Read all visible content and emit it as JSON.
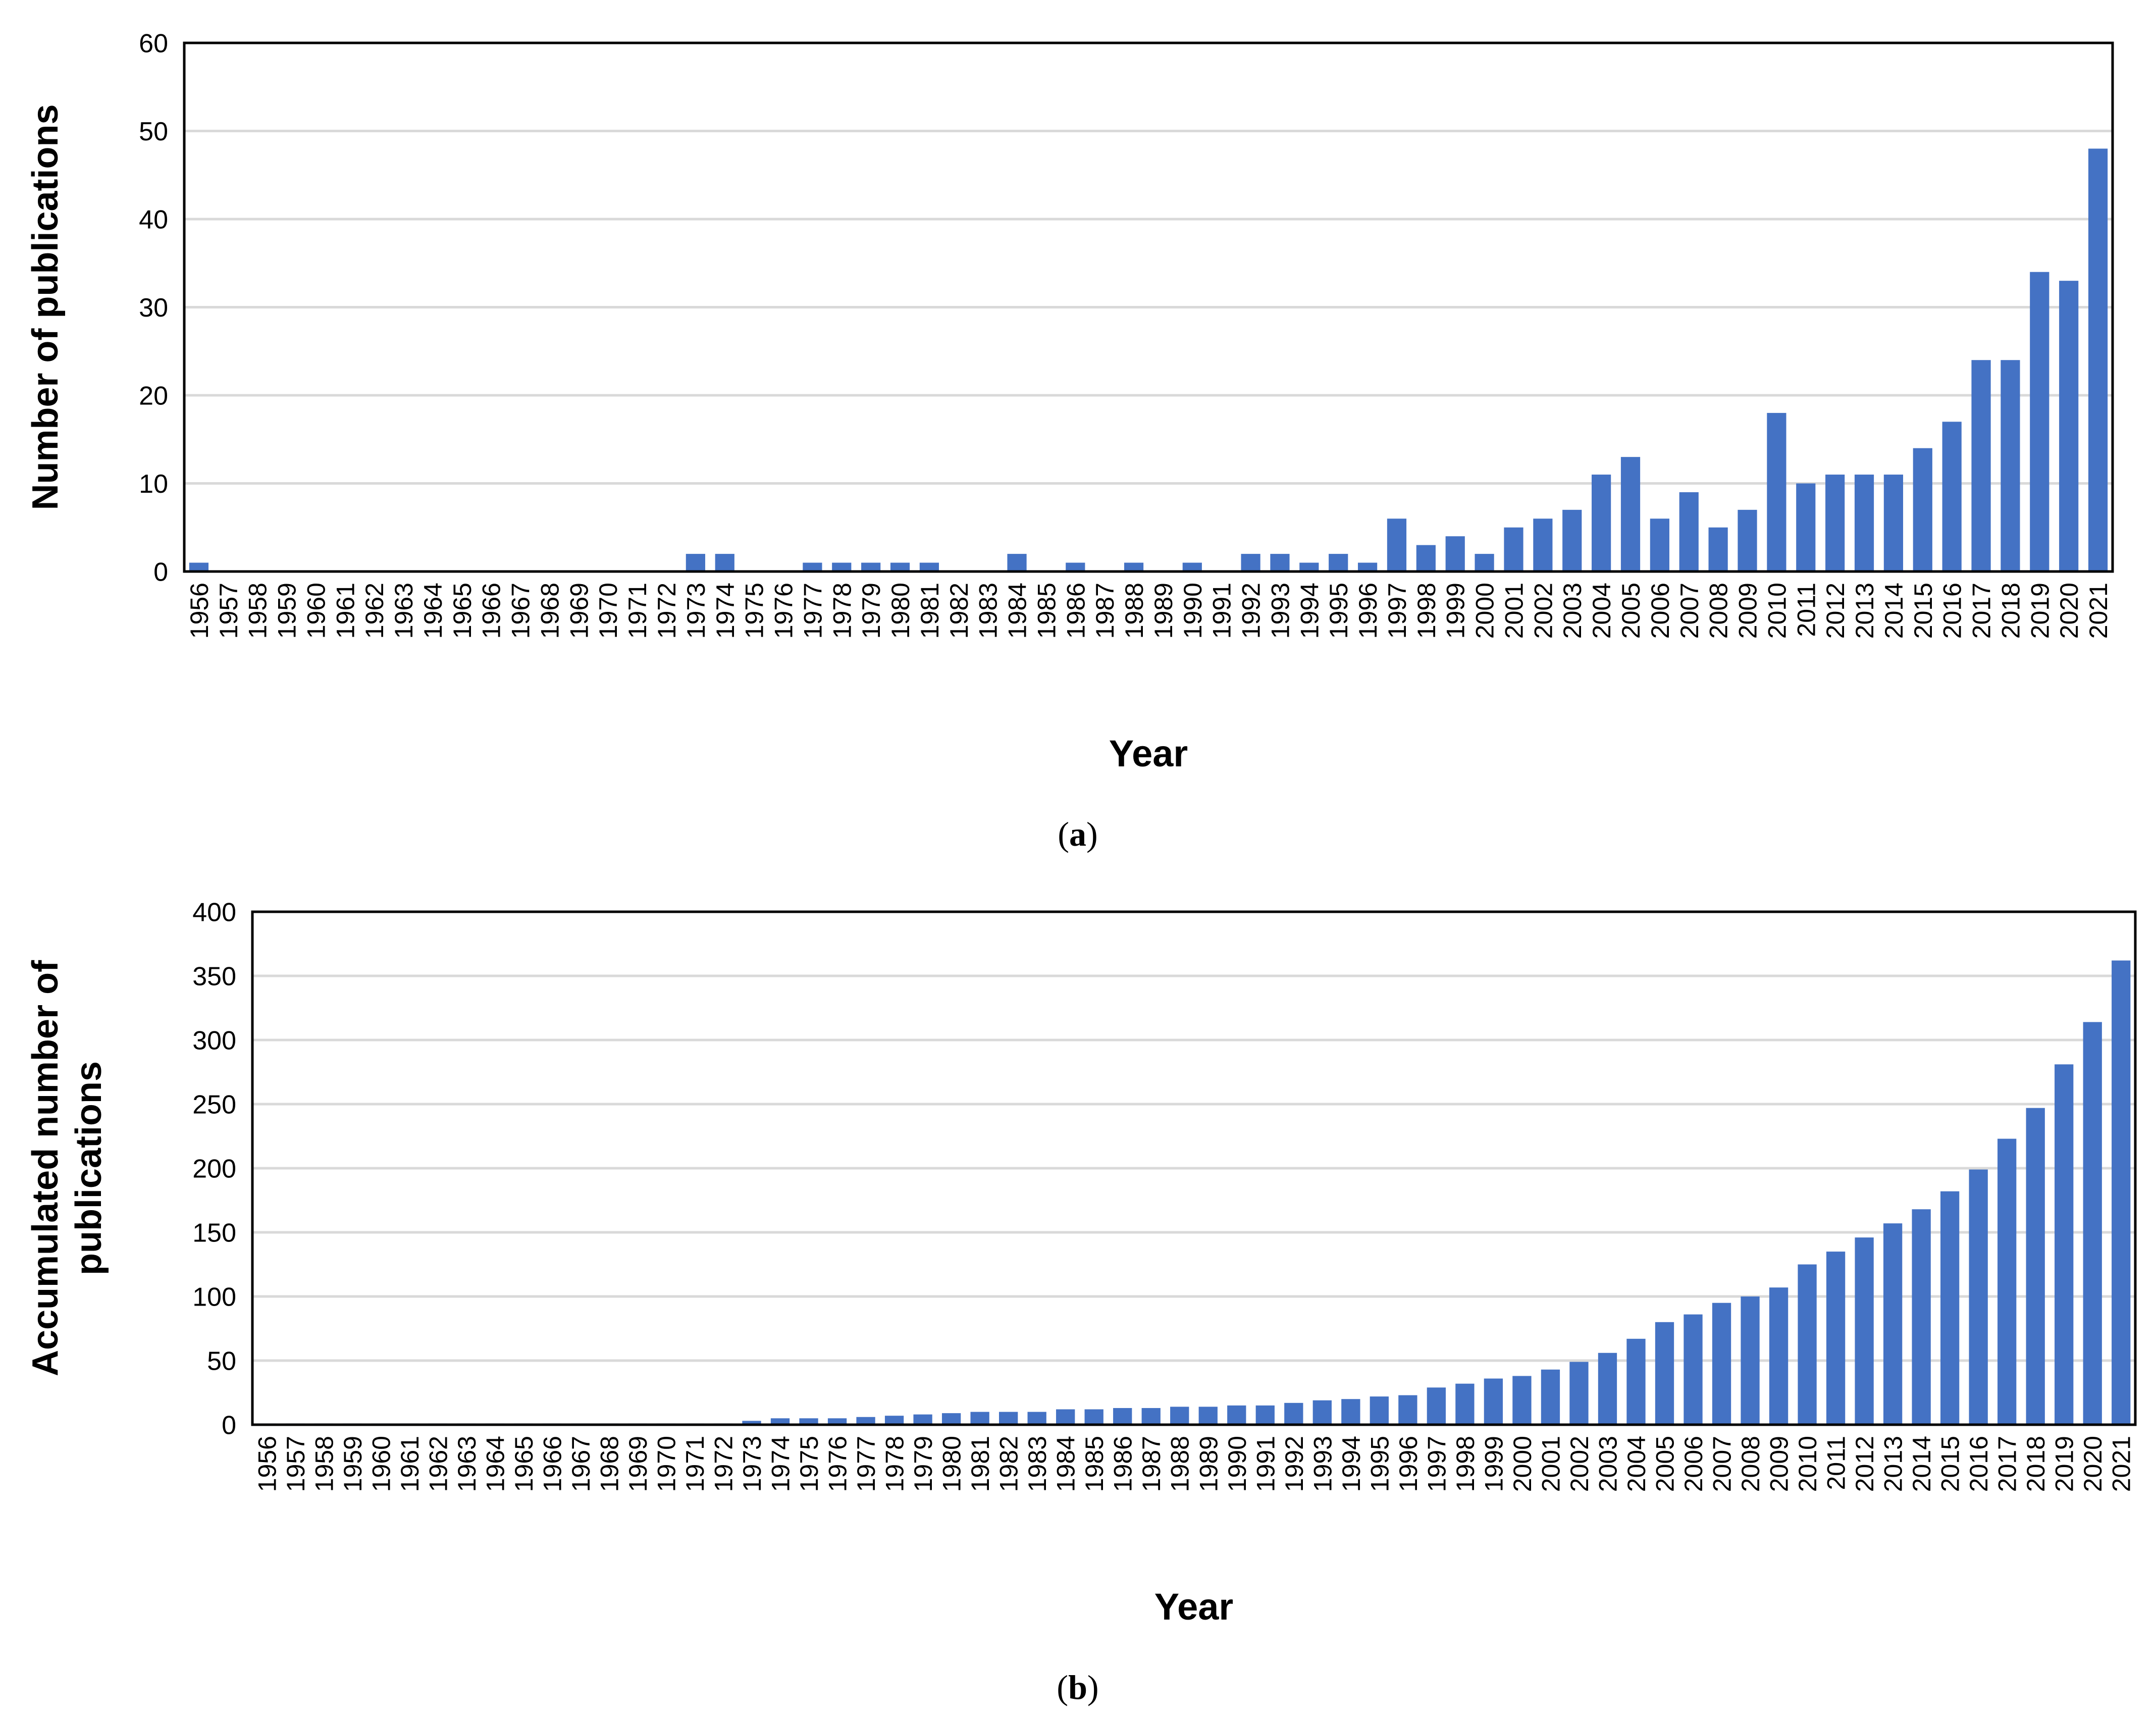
{
  "colors": {
    "bar": "#4472C4",
    "grid": "#D9D9D9",
    "frame": "#000000"
  },
  "captions": {
    "a": "a",
    "b": "b"
  },
  "chart_data": [
    {
      "type": "bar",
      "panel": "a",
      "title": "",
      "xlabel": "Year",
      "ylabel": "Number of publications",
      "ylim": [
        0,
        60
      ],
      "yticks": [
        0,
        10,
        20,
        30,
        40,
        50,
        60
      ],
      "grid": true,
      "categories": [
        "1956",
        "1957",
        "1958",
        "1959",
        "1960",
        "1961",
        "1962",
        "1963",
        "1964",
        "1965",
        "1966",
        "1967",
        "1968",
        "1969",
        "1970",
        "1971",
        "1972",
        "1973",
        "1974",
        "1975",
        "1976",
        "1977",
        "1978",
        "1979",
        "1980",
        "1981",
        "1982",
        "1983",
        "1984",
        "1985",
        "1986",
        "1987",
        "1988",
        "1989",
        "1990",
        "1991",
        "1992",
        "1993",
        "1994",
        "1995",
        "1996",
        "1997",
        "1998",
        "1999",
        "2000",
        "2001",
        "2002",
        "2003",
        "2004",
        "2005",
        "2006",
        "2007",
        "2008",
        "2009",
        "2010",
        "2011",
        "2012",
        "2013",
        "2014",
        "2015",
        "2016",
        "2017",
        "2018",
        "2019",
        "2020",
        "2021"
      ],
      "values": [
        1,
        0,
        0,
        0,
        0,
        0,
        0,
        0,
        0,
        0,
        0,
        0,
        0,
        0,
        0,
        0,
        0,
        2,
        2,
        0,
        0,
        1,
        1,
        1,
        1,
        1,
        0,
        0,
        2,
        0,
        1,
        0,
        1,
        0,
        1,
        0,
        2,
        2,
        1,
        2,
        1,
        6,
        3,
        4,
        2,
        5,
        6,
        7,
        11,
        13,
        6,
        9,
        5,
        7,
        18,
        10,
        11,
        11,
        11,
        14,
        17,
        24,
        24,
        34,
        33,
        48
      ]
    },
    {
      "type": "bar",
      "panel": "b",
      "title": "",
      "xlabel": "Year",
      "ylabel": [
        "Accumulated number of",
        "publications"
      ],
      "ylim": [
        0,
        400
      ],
      "yticks": [
        0,
        50,
        100,
        150,
        200,
        250,
        300,
        350,
        400
      ],
      "grid": true,
      "categories": [
        "1956",
        "1957",
        "1958",
        "1959",
        "1960",
        "1961",
        "1962",
        "1963",
        "1964",
        "1965",
        "1966",
        "1967",
        "1968",
        "1969",
        "1970",
        "1971",
        "1972",
        "1973",
        "1974",
        "1975",
        "1976",
        "1977",
        "1978",
        "1979",
        "1980",
        "1981",
        "1982",
        "1983",
        "1984",
        "1985",
        "1986",
        "1987",
        "1988",
        "1989",
        "1990",
        "1991",
        "1992",
        "1993",
        "1994",
        "1995",
        "1996",
        "1997",
        "1998",
        "1999",
        "2000",
        "2001",
        "2002",
        "2003",
        "2004",
        "2005",
        "2006",
        "2007",
        "2008",
        "2009",
        "2010",
        "2011",
        "2012",
        "2013",
        "2014",
        "2015",
        "2016",
        "2017",
        "2018",
        "2019",
        "2020",
        "2021"
      ],
      "values": [
        1,
        1,
        1,
        1,
        1,
        1,
        1,
        1,
        1,
        1,
        1,
        1,
        1,
        1,
        1,
        1,
        1,
        3,
        5,
        5,
        5,
        6,
        7,
        8,
        9,
        10,
        10,
        10,
        12,
        12,
        13,
        13,
        14,
        14,
        15,
        15,
        17,
        19,
        20,
        22,
        23,
        29,
        32,
        36,
        38,
        43,
        49,
        56,
        67,
        80,
        86,
        95,
        100,
        107,
        125,
        135,
        146,
        157,
        168,
        182,
        199,
        223,
        247,
        281,
        314,
        362
      ]
    }
  ]
}
